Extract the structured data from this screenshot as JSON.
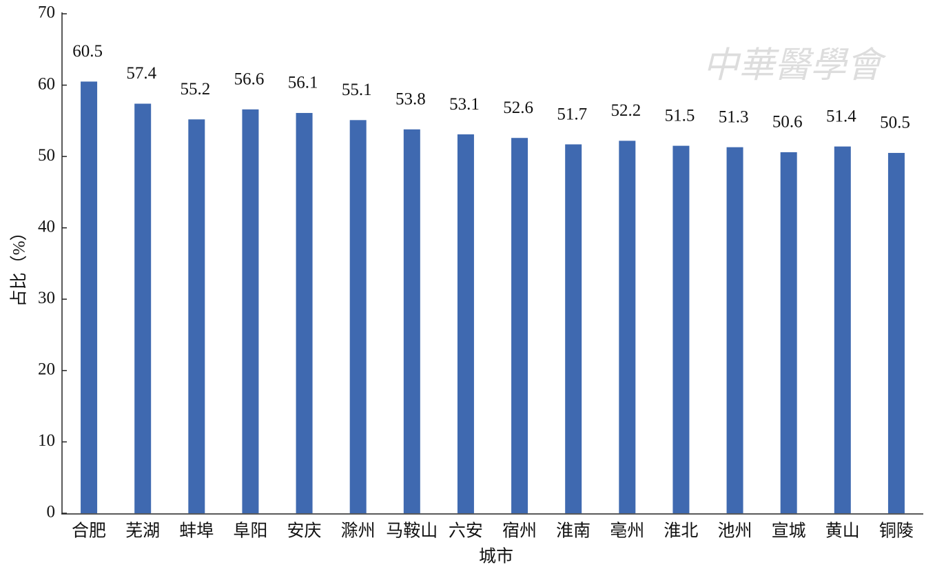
{
  "chart_data": {
    "type": "bar",
    "watermark": "中華醫學會",
    "categories": [
      "合肥",
      "芜湖",
      "蚌埠",
      "阜阳",
      "安庆",
      "滁州",
      "马鞍山",
      "六安",
      "宿州",
      "淮南",
      "亳州",
      "淮北",
      "池州",
      "宣城",
      "黄山",
      "铜陵"
    ],
    "values": [
      60.5,
      57.4,
      55.2,
      56.6,
      56.1,
      55.1,
      53.8,
      53.1,
      52.6,
      51.7,
      52.2,
      51.5,
      51.3,
      50.6,
      51.4,
      50.5
    ],
    "color": "#3f69b0",
    "xlabel": "城市",
    "ylabel": "占比（%）",
    "ylim": [
      0,
      70
    ],
    "yticks": [
      0,
      10,
      20,
      30,
      40,
      50,
      60,
      70
    ],
    "grid": false
  }
}
